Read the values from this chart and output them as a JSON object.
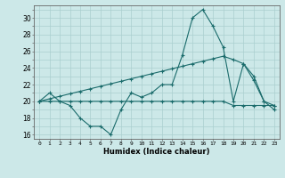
{
  "bg_color": "#cce8e8",
  "grid_color": "#aacfcf",
  "line_color": "#1a6b6b",
  "x_labels": [
    "0",
    "1",
    "2",
    "3",
    "4",
    "5",
    "6",
    "7",
    "8",
    "9",
    "10",
    "11",
    "12",
    "13",
    "14",
    "15",
    "16",
    "17",
    "18",
    "19",
    "20",
    "21",
    "22",
    "23"
  ],
  "xlabel": "Humidex (Indice chaleur)",
  "ylim": [
    15.5,
    31.5
  ],
  "yticks": [
    16,
    18,
    20,
    22,
    24,
    26,
    28,
    30
  ],
  "series1": [
    20,
    21,
    20,
    19.5,
    18,
    17,
    17,
    16,
    19,
    21,
    20.5,
    21,
    22,
    22,
    25.5,
    30,
    31,
    29,
    26.5,
    20,
    24.5,
    22.5,
    20,
    19
  ],
  "series2": [
    20,
    20,
    20,
    20,
    20,
    20,
    20,
    20,
    20,
    20,
    20,
    20,
    20,
    20,
    20,
    20,
    20,
    20,
    20,
    19.5,
    19.5,
    19.5,
    19.5,
    19.5
  ],
  "series3": [
    20,
    20.3,
    20.6,
    20.9,
    21.2,
    21.5,
    21.8,
    22.1,
    22.4,
    22.7,
    23.0,
    23.3,
    23.6,
    23.9,
    24.2,
    24.5,
    24.8,
    25.1,
    25.4,
    25.0,
    24.5,
    23.0,
    20.0,
    19.5
  ]
}
